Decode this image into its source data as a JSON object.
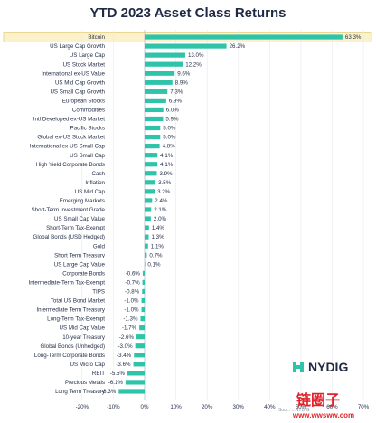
{
  "colors": {
    "bar": "#2ec4a9",
    "highlight_bg": "#fbf2cc",
    "highlight_border": "#e6cf7c",
    "text": "#1f2a44",
    "grid": "#e6e9ef",
    "watermark": "#e0242c"
  },
  "logo": {
    "text": "NYDIG",
    "icon": "nydig-logo-icon"
  },
  "source_note": "Sou... ...NYDIG",
  "watermark": {
    "text": "链圈子",
    "url": "www.wwsww.com"
  },
  "chart_data": {
    "type": "bar",
    "orientation": "horizontal",
    "title": "YTD 2023 Asset Class Returns",
    "xlabel": "",
    "ylabel": "",
    "xlim": [
      -20,
      70
    ],
    "xticks": [
      -20,
      -10,
      0,
      10,
      20,
      30,
      40,
      50,
      60,
      70
    ],
    "xtick_labels": [
      "-20%",
      "-10%",
      "0%",
      "10%",
      "20%",
      "30%",
      "40%",
      "50%",
      "60%",
      "70%"
    ],
    "highlighted_category": "Bitcoin",
    "categories": [
      "Bitcoin",
      "US Large Cap Growth",
      "US Large Cap",
      "US Stock Market",
      "International ex-US Value",
      "US Mid Cap Growth",
      "US Small Cap Growth",
      "European Stocks",
      "Commodities",
      "Intl Developed ex-US Market",
      "Pacific Stocks",
      "Global ex-US Stock Market",
      "International ex-US Small Cap",
      "US Small Cap",
      "High Yield Corporate Bonds",
      "Cash",
      "Inflation",
      "US Mid Cap",
      "Emerging Markets",
      "Short-Term Investment Grade",
      "US Small Cap Value",
      "Short-Term Tax-Exempt",
      "Global Bonds (USD Hedged)",
      "Gold",
      "Short Term Treasury",
      "US Large Cap Value",
      "Corporate Bonds",
      "Intermediate-Term Tax-Exempt",
      "TIPS",
      "Total US Bond Market",
      "Intermediate Term Treasury",
      "Long-Term Tax-Exempt",
      "US Mid Cap Value",
      "10-year Treasury",
      "Global Bonds (Unhedged)",
      "Long-Term Corporate Bonds",
      "US Micro Cap",
      "REIT",
      "Precious Metals",
      "Long Term Treasury"
    ],
    "values": [
      63.3,
      26.2,
      13.0,
      12.2,
      9.6,
      8.9,
      7.3,
      6.9,
      6.0,
      5.9,
      5.0,
      5.0,
      4.8,
      4.1,
      4.1,
      3.9,
      3.5,
      3.2,
      2.4,
      2.1,
      2.0,
      1.4,
      1.3,
      1.1,
      0.7,
      0.1,
      -0.6,
      -0.7,
      -0.8,
      -1.0,
      -1.0,
      -1.3,
      -1.7,
      -2.6,
      -3.0,
      -3.4,
      -3.6,
      -5.5,
      -6.1,
      -8.3
    ],
    "value_labels": [
      "63.3%",
      "26.2%",
      "13.0%",
      "12.2%",
      "9.6%",
      "8.9%",
      "7.3%",
      "6.9%",
      "6.0%",
      "5.9%",
      "5.0%",
      "5.0%",
      "4.8%",
      "4.1%",
      "4.1%",
      "3.9%",
      "3.5%",
      "3.2%",
      "2.4%",
      "2.1%",
      "2.0%",
      "1.4%",
      "1.3%",
      "1.1%",
      "0.7%",
      "0.1%",
      "-0.6%",
      "-0.7%",
      "-0.8%",
      "-1.0%",
      "-1.0%",
      "-1.3%",
      "-1.7%",
      "-2.6%",
      "-3.0%",
      "-3.4%",
      "-3.6%",
      "-5.5%",
      "-6.1%",
      "-8.3%"
    ],
    "grid": true,
    "legend": "none"
  }
}
